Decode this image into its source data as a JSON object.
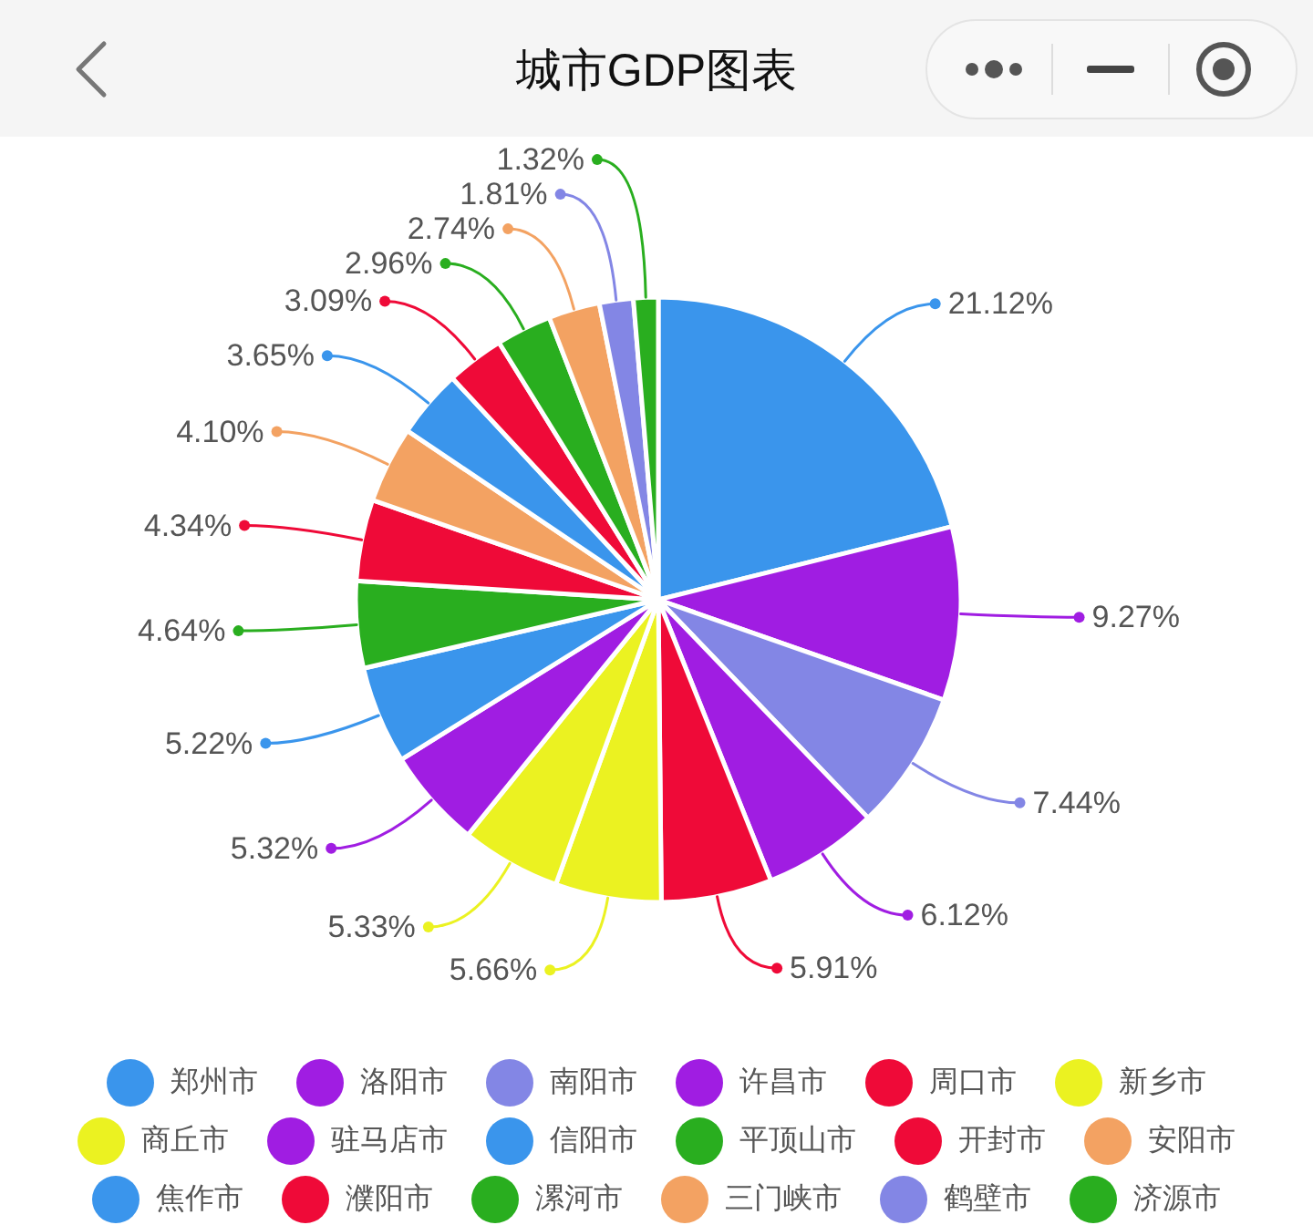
{
  "chart_data": {
    "type": "pie",
    "title": "城市GDP图表",
    "categories": [
      "郑州市",
      "洛阳市",
      "南阳市",
      "许昌市",
      "周口市",
      "新乡市",
      "商丘市",
      "驻马店市",
      "信阳市",
      "平顶山市",
      "开封市",
      "安阳市",
      "焦作市",
      "濮阳市",
      "漯河市",
      "三门峡市",
      "鹤壁市",
      "济源市"
    ],
    "values": [
      21.12,
      9.27,
      7.44,
      6.12,
      5.91,
      5.66,
      5.33,
      5.32,
      5.22,
      4.64,
      4.34,
      4.1,
      3.65,
      3.09,
      2.96,
      2.74,
      1.81,
      1.32
    ],
    "value_labels": [
      "21.12%",
      "9.27%",
      "7.44%",
      "6.12%",
      "5.91%",
      "5.66%",
      "5.33%",
      "5.32%",
      "5.22%",
      "4.64%",
      "4.34%",
      "4.10%",
      "3.65%",
      "3.09%",
      "2.96%",
      "2.74%",
      "1.81%",
      "1.32%"
    ],
    "colors": [
      "#3a95ec",
      "#a01de2",
      "#8386e5",
      "#a01de2",
      "#ef0a38",
      "#ebf221",
      "#ebf221",
      "#a01de2",
      "#3a95ec",
      "#29ae1f",
      "#ef0a38",
      "#f3a262",
      "#3a95ec",
      "#ef0a38",
      "#29ae1f",
      "#f3a262",
      "#8386e5",
      "#29ae1f"
    ],
    "legend": "bottom"
  }
}
